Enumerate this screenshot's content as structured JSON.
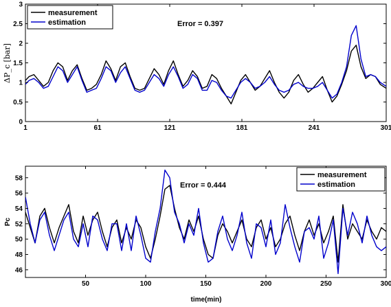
{
  "chart_data": [
    {
      "type": "line",
      "ylabel": "ΔP_c [bar]",
      "xlabel": "",
      "xlim": [
        1,
        301
      ],
      "ylim": [
        0,
        3
      ],
      "xticks": [
        1,
        61,
        121,
        181,
        241,
        301
      ],
      "yticks": [
        0,
        0.5,
        1,
        1.5,
        2,
        2.5,
        3
      ],
      "annotation": "Error = 0.397",
      "legend": "top-left",
      "grid": false,
      "series": [
        {
          "name": "measurement",
          "color": "#000000",
          "x": [
            1,
            4,
            8,
            12,
            16,
            20,
            24,
            28,
            32,
            36,
            40,
            44,
            48,
            52,
            56,
            60,
            64,
            68,
            72,
            76,
            80,
            84,
            88,
            92,
            96,
            100,
            104,
            108,
            112,
            116,
            120,
            124,
            128,
            132,
            136,
            140,
            144,
            148,
            152,
            156,
            160,
            164,
            168,
            172,
            176,
            180,
            184,
            188,
            192,
            196,
            200,
            204,
            208,
            212,
            216,
            220,
            224,
            228,
            232,
            236,
            240,
            244,
            248,
            252,
            256,
            260,
            264,
            268,
            272,
            276,
            280,
            284,
            288,
            292,
            296,
            301
          ],
          "y": [
            1.05,
            1.15,
            1.2,
            1.05,
            0.9,
            1.0,
            1.3,
            1.5,
            1.4,
            1.05,
            1.3,
            1.45,
            1.1,
            0.8,
            0.85,
            0.95,
            1.2,
            1.55,
            1.35,
            1.05,
            1.4,
            1.5,
            1.15,
            0.85,
            0.8,
            0.85,
            1.1,
            1.35,
            1.2,
            0.95,
            1.3,
            1.55,
            1.2,
            0.9,
            1.05,
            1.3,
            1.15,
            0.85,
            0.9,
            1.2,
            1.1,
            0.85,
            0.65,
            0.45,
            0.75,
            1.05,
            1.2,
            1.0,
            0.8,
            0.9,
            1.1,
            1.3,
            1.0,
            0.75,
            0.6,
            0.75,
            1.05,
            1.2,
            0.95,
            0.75,
            0.85,
            1.0,
            1.15,
            0.8,
            0.5,
            0.65,
            0.95,
            1.3,
            1.8,
            1.95,
            1.4,
            1.1,
            1.2,
            1.15,
            0.95,
            0.85
          ]
        },
        {
          "name": "estimation",
          "color": "#0000cc",
          "x": [
            1,
            4,
            8,
            12,
            16,
            20,
            24,
            28,
            32,
            36,
            40,
            44,
            48,
            52,
            56,
            60,
            64,
            68,
            72,
            76,
            80,
            84,
            88,
            92,
            96,
            100,
            104,
            108,
            112,
            116,
            120,
            124,
            128,
            132,
            136,
            140,
            144,
            148,
            152,
            156,
            160,
            164,
            168,
            172,
            176,
            180,
            184,
            188,
            192,
            196,
            200,
            204,
            208,
            212,
            216,
            220,
            224,
            228,
            232,
            236,
            240,
            244,
            248,
            252,
            256,
            260,
            264,
            268,
            272,
            276,
            280,
            284,
            288,
            292,
            296,
            301
          ],
          "y": [
            0.95,
            1.05,
            1.1,
            1.0,
            0.85,
            0.9,
            1.15,
            1.4,
            1.3,
            1.0,
            1.2,
            1.4,
            1.05,
            0.75,
            0.8,
            0.85,
            1.1,
            1.4,
            1.3,
            1.0,
            1.25,
            1.4,
            1.1,
            0.8,
            0.75,
            0.8,
            1.0,
            1.2,
            1.1,
            0.9,
            1.2,
            1.4,
            1.15,
            0.85,
            0.95,
            1.2,
            1.1,
            0.8,
            0.8,
            1.05,
            1.0,
            0.8,
            0.65,
            0.6,
            0.8,
            1.0,
            1.1,
            1.0,
            0.85,
            0.9,
            1.0,
            1.15,
            0.95,
            0.8,
            0.75,
            0.8,
            0.95,
            1.0,
            0.9,
            0.85,
            0.85,
            0.9,
            1.0,
            0.8,
            0.6,
            0.7,
            1.0,
            1.4,
            2.2,
            2.45,
            1.6,
            1.15,
            1.2,
            1.15,
            1.0,
            0.9
          ]
        }
      ]
    },
    {
      "type": "line",
      "ylabel": "Pc",
      "xlabel": "time(min)",
      "xlim": [
        0,
        300
      ],
      "ylim": [
        45,
        59.5
      ],
      "xticks": [
        50,
        100,
        150,
        200,
        250,
        300
      ],
      "yticks": [
        46,
        48,
        50,
        52,
        54,
        56,
        58
      ],
      "annotation": "Error = 0.444",
      "legend": "top-right",
      "grid": false,
      "series": [
        {
          "name": "measurement",
          "color": "#000000",
          "x": [
            0,
            4,
            8,
            12,
            16,
            20,
            24,
            28,
            32,
            36,
            40,
            44,
            48,
            52,
            56,
            60,
            64,
            68,
            72,
            76,
            80,
            84,
            88,
            92,
            96,
            100,
            104,
            108,
            112,
            116,
            120,
            124,
            128,
            132,
            136,
            140,
            144,
            148,
            152,
            156,
            160,
            164,
            168,
            172,
            176,
            180,
            184,
            188,
            192,
            196,
            200,
            204,
            208,
            212,
            216,
            220,
            224,
            228,
            232,
            236,
            240,
            244,
            248,
            252,
            256,
            260,
            264,
            268,
            272,
            276,
            280,
            284,
            288,
            292,
            296,
            300
          ],
          "y": [
            53.5,
            51.5,
            49.5,
            53.0,
            54.0,
            51.5,
            49.5,
            51.5,
            53.0,
            54.5,
            51.0,
            49.5,
            53.0,
            50.5,
            52.5,
            53.5,
            51.0,
            49.0,
            51.5,
            52.5,
            49.5,
            51.5,
            50.0,
            52.5,
            51.5,
            49.0,
            47.5,
            50.0,
            53.0,
            56.5,
            57.0,
            54.0,
            51.5,
            50.0,
            52.5,
            51.0,
            53.0,
            50.0,
            48.0,
            47.5,
            50.5,
            52.0,
            51.0,
            49.5,
            51.0,
            52.5,
            50.0,
            49.0,
            51.5,
            52.5,
            50.0,
            51.5,
            49.0,
            50.0,
            52.0,
            53.0,
            50.5,
            48.5,
            51.0,
            52.5,
            50.5,
            52.0,
            49.5,
            51.0,
            53.0,
            47.0,
            54.5,
            50.0,
            52.0,
            51.0,
            50.0,
            52.5,
            51.0,
            50.0,
            51.5,
            51.0
          ]
        },
        {
          "name": "estimation",
          "color": "#0000cc",
          "x": [
            0,
            4,
            8,
            12,
            16,
            20,
            24,
            28,
            32,
            36,
            40,
            44,
            48,
            52,
            56,
            60,
            64,
            68,
            72,
            76,
            80,
            84,
            88,
            92,
            96,
            100,
            104,
            108,
            112,
            116,
            120,
            124,
            128,
            132,
            136,
            140,
            144,
            148,
            152,
            156,
            160,
            164,
            168,
            172,
            176,
            180,
            184,
            188,
            192,
            196,
            200,
            204,
            208,
            212,
            216,
            220,
            224,
            228,
            232,
            236,
            240,
            244,
            248,
            252,
            256,
            260,
            264,
            268,
            272,
            276,
            280,
            284,
            288,
            292,
            296,
            300
          ],
          "y": [
            55.5,
            52.0,
            49.5,
            52.5,
            53.5,
            50.5,
            48.5,
            50.5,
            52.5,
            53.5,
            50.0,
            49.0,
            52.0,
            49.0,
            53.0,
            52.5,
            50.0,
            48.5,
            52.0,
            52.0,
            48.5,
            52.0,
            48.5,
            53.0,
            50.5,
            47.5,
            47.0,
            51.0,
            54.0,
            59.0,
            58.0,
            53.5,
            52.0,
            49.5,
            52.0,
            50.5,
            54.0,
            49.5,
            47.0,
            47.5,
            51.0,
            53.0,
            50.0,
            48.5,
            50.5,
            53.5,
            49.5,
            47.5,
            52.0,
            51.5,
            49.0,
            52.5,
            48.0,
            49.5,
            54.5,
            51.5,
            49.0,
            47.0,
            51.0,
            51.5,
            50.0,
            53.0,
            47.5,
            49.5,
            52.5,
            45.5,
            54.0,
            50.5,
            53.5,
            52.0,
            49.5,
            53.0,
            50.5,
            49.0,
            48.5,
            49.0
          ]
        }
      ]
    }
  ]
}
